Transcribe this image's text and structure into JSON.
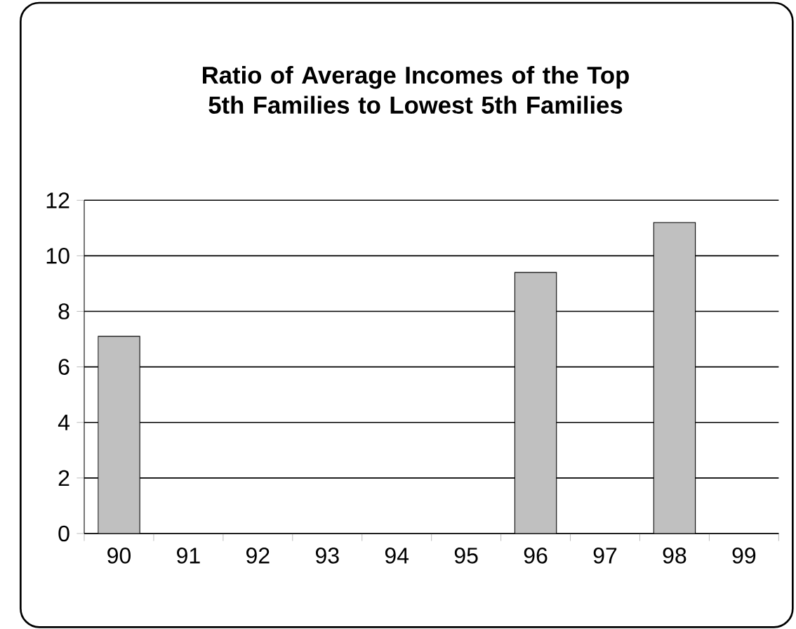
{
  "chart_data": {
    "type": "bar",
    "title": "Ratio of Average Incomes of the Top 5th Families to Lowest 5th Families",
    "categories": [
      "90",
      "91",
      "92",
      "93",
      "94",
      "95",
      "96",
      "97",
      "98",
      "99"
    ],
    "values": [
      7.1,
      null,
      null,
      null,
      null,
      null,
      9.4,
      null,
      11.2,
      null
    ],
    "color": "#c0c0c0",
    "ylim": [
      0,
      12
    ],
    "yticks": [
      0,
      2,
      4,
      6,
      8,
      10,
      12
    ],
    "grid": "y"
  }
}
